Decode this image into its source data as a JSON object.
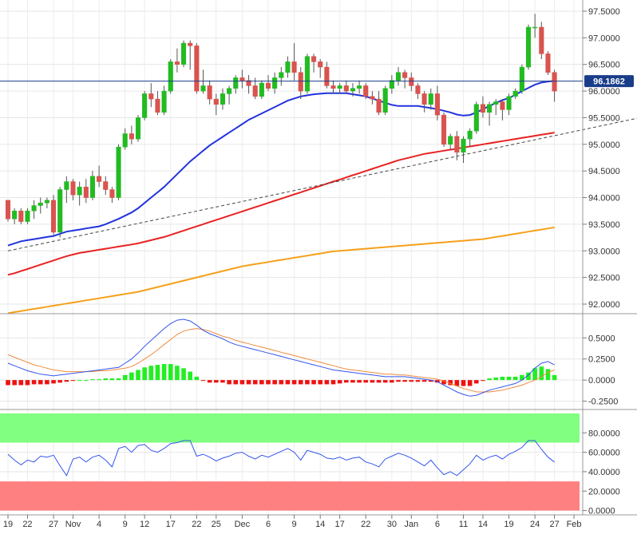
{
  "chart_data": [
    {
      "type": "candlestick",
      "panel": "price",
      "ylim": [
        91.85,
        97.65
      ],
      "yticks": [
        "97.5000",
        "97.0000",
        "96.5000",
        "96.0000",
        "95.5000",
        "95.0000",
        "94.5000",
        "94.0000",
        "93.5000",
        "93.0000",
        "92.5000",
        "92.0000"
      ],
      "ytick_values": [
        97.5,
        97.0,
        96.5,
        96.0,
        95.5,
        95.0,
        94.5,
        94.0,
        93.5,
        93.0,
        92.5,
        92.0
      ],
      "current_price": 96.1862,
      "current_price_label": "96.1862",
      "colors": {
        "up": "#22bb22",
        "down": "#d9534f",
        "sma20": "#2233dd",
        "sma50": "#e82222",
        "sma200": "#f5a01a",
        "trendline": "#444444",
        "price_line": "#1a3d8a"
      },
      "trendline": {
        "x": [
          0,
          101
        ],
        "y": [
          93.0,
          95.6
        ]
      },
      "candles": [
        [
          93.95,
          93.95,
          93.55,
          93.6
        ],
        [
          93.6,
          93.8,
          93.5,
          93.75
        ],
        [
          93.75,
          93.8,
          93.5,
          93.55
        ],
        [
          93.55,
          93.8,
          93.5,
          93.75
        ],
        [
          93.75,
          93.95,
          93.6,
          93.85
        ],
        [
          93.85,
          94.0,
          93.7,
          93.9
        ],
        [
          93.9,
          94.0,
          93.8,
          93.95
        ],
        [
          93.95,
          94.05,
          93.3,
          93.35
        ],
        [
          93.35,
          94.2,
          93.25,
          94.15
        ],
        [
          94.15,
          94.4,
          93.9,
          94.3
        ],
        [
          94.3,
          94.35,
          93.95,
          94.05
        ],
        [
          94.05,
          94.3,
          93.85,
          94.2
        ],
        [
          94.2,
          94.35,
          93.9,
          94.0
        ],
        [
          94.0,
          94.5,
          93.95,
          94.4
        ],
        [
          94.4,
          94.6,
          94.2,
          94.3
        ],
        [
          94.3,
          94.4,
          94.05,
          94.15
        ],
        [
          94.15,
          94.2,
          93.9,
          94.0
        ],
        [
          94.0,
          95.0,
          93.95,
          94.95
        ],
        [
          94.95,
          95.3,
          94.9,
          95.2
        ],
        [
          95.2,
          95.35,
          95.0,
          95.1
        ],
        [
          95.1,
          95.55,
          95.05,
          95.5
        ],
        [
          95.5,
          96.0,
          95.45,
          95.95
        ],
        [
          95.95,
          96.15,
          95.7,
          95.85
        ],
        [
          95.85,
          96.0,
          95.55,
          95.6
        ],
        [
          95.6,
          96.1,
          95.55,
          96.0
        ],
        [
          96.0,
          96.6,
          95.95,
          96.55
        ],
        [
          96.55,
          96.8,
          96.35,
          96.5
        ],
        [
          96.5,
          96.95,
          96.45,
          96.9
        ],
        [
          96.9,
          96.95,
          96.4,
          96.85
        ],
        [
          96.85,
          96.9,
          95.95,
          96.0
        ],
        [
          96.0,
          96.4,
          95.95,
          96.1
        ],
        [
          96.1,
          96.2,
          95.75,
          95.85
        ],
        [
          95.85,
          95.95,
          95.55,
          95.75
        ],
        [
          95.75,
          96.05,
          95.65,
          95.95
        ],
        [
          95.95,
          96.1,
          95.75,
          96.05
        ],
        [
          96.05,
          96.3,
          95.95,
          96.25
        ],
        [
          96.25,
          96.4,
          96.05,
          96.2
        ],
        [
          96.2,
          96.3,
          95.95,
          96.1
        ],
        [
          96.1,
          96.25,
          95.85,
          95.9
        ],
        [
          95.9,
          96.2,
          95.85,
          96.15
        ],
        [
          96.15,
          96.3,
          96.0,
          96.05
        ],
        [
          96.05,
          96.35,
          95.95,
          96.25
        ],
        [
          96.25,
          96.45,
          96.1,
          96.35
        ],
        [
          96.35,
          96.65,
          96.25,
          96.55
        ],
        [
          96.55,
          96.9,
          96.2,
          96.35
        ],
        [
          96.35,
          96.45,
          95.85,
          96.0
        ],
        [
          96.0,
          96.7,
          95.95,
          96.65
        ],
        [
          96.65,
          96.7,
          96.35,
          96.55
        ],
        [
          96.55,
          96.6,
          96.25,
          96.45
        ],
        [
          96.45,
          96.55,
          96.05,
          96.1
        ],
        [
          96.1,
          96.2,
          95.95,
          96.05
        ],
        [
          96.05,
          96.15,
          95.95,
          96.1
        ],
        [
          96.1,
          96.2,
          95.95,
          96.0
        ],
        [
          96.0,
          96.15,
          95.9,
          96.05
        ],
        [
          96.05,
          96.2,
          95.95,
          96.1
        ],
        [
          96.1,
          96.15,
          95.85,
          95.9
        ],
        [
          95.9,
          96.0,
          95.75,
          95.85
        ],
        [
          95.85,
          96.0,
          95.55,
          95.6
        ],
        [
          95.6,
          96.1,
          95.55,
          96.05
        ],
        [
          96.05,
          96.3,
          95.95,
          96.2
        ],
        [
          96.2,
          96.45,
          96.1,
          96.35
        ],
        [
          96.35,
          96.4,
          96.05,
          96.25
        ],
        [
          96.25,
          96.35,
          96.0,
          96.1
        ],
        [
          96.1,
          96.15,
          95.85,
          95.95
        ],
        [
          95.95,
          96.0,
          95.6,
          95.75
        ],
        [
          95.75,
          96.05,
          95.65,
          95.95
        ],
        [
          95.95,
          96.1,
          95.45,
          95.55
        ],
        [
          95.55,
          95.6,
          94.95,
          95.0
        ],
        [
          95.0,
          95.2,
          94.9,
          95.15
        ],
        [
          95.15,
          95.25,
          94.7,
          94.85
        ],
        [
          94.85,
          95.15,
          94.65,
          95.1
        ],
        [
          95.1,
          95.3,
          94.95,
          95.25
        ],
        [
          95.25,
          95.8,
          95.2,
          95.75
        ],
        [
          95.75,
          95.9,
          95.5,
          95.6
        ],
        [
          95.6,
          95.8,
          95.35,
          95.75
        ],
        [
          95.75,
          95.85,
          95.55,
          95.8
        ],
        [
          95.8,
          95.85,
          95.45,
          95.65
        ],
        [
          95.65,
          95.95,
          95.55,
          95.9
        ],
        [
          95.9,
          96.05,
          95.85,
          96.0
        ],
        [
          96.0,
          96.5,
          95.95,
          96.45
        ],
        [
          96.45,
          97.25,
          96.4,
          97.2
        ],
        [
          97.2,
          97.45,
          97.0,
          97.2
        ],
        [
          97.2,
          97.3,
          96.6,
          96.7
        ],
        [
          96.7,
          96.75,
          96.3,
          96.35
        ],
        [
          96.35,
          96.4,
          95.8,
          96.0
        ]
      ],
      "sma20": [
        93.1,
        93.14,
        93.18,
        93.2,
        93.22,
        93.24,
        93.26,
        93.28,
        93.32,
        93.36,
        93.38,
        93.4,
        93.42,
        93.44,
        93.46,
        93.5,
        93.55,
        93.6,
        93.66,
        93.72,
        93.8,
        93.9,
        94.0,
        94.1,
        94.2,
        94.32,
        94.44,
        94.56,
        94.68,
        94.78,
        94.88,
        94.98,
        95.06,
        95.14,
        95.22,
        95.3,
        95.38,
        95.46,
        95.52,
        95.58,
        95.64,
        95.7,
        95.76,
        95.82,
        95.86,
        95.9,
        95.92,
        95.94,
        95.95,
        95.96,
        95.96,
        95.96,
        95.96,
        95.94,
        95.92,
        95.9,
        95.86,
        95.82,
        95.78,
        95.74,
        95.72,
        95.72,
        95.72,
        95.72,
        95.7,
        95.68,
        95.66,
        95.63,
        95.6,
        95.56,
        95.54,
        95.55,
        95.6,
        95.66,
        95.72,
        95.78,
        95.83,
        95.87,
        95.93,
        96.0,
        96.06,
        96.12,
        96.16,
        96.18,
        96.19
      ],
      "sma50": [
        92.55,
        92.58,
        92.62,
        92.66,
        92.7,
        92.74,
        92.78,
        92.82,
        92.86,
        92.9,
        92.93,
        92.96,
        92.98,
        93.0,
        93.02,
        93.04,
        93.06,
        93.08,
        93.1,
        93.12,
        93.14,
        93.17,
        93.2,
        93.23,
        93.26,
        93.3,
        93.34,
        93.38,
        93.42,
        93.46,
        93.5,
        93.54,
        93.58,
        93.62,
        93.66,
        93.7,
        93.74,
        93.78,
        93.82,
        93.86,
        93.9,
        93.94,
        93.98,
        94.02,
        94.06,
        94.1,
        94.14,
        94.18,
        94.22,
        94.26,
        94.3,
        94.34,
        94.38,
        94.42,
        94.46,
        94.5,
        94.54,
        94.58,
        94.62,
        94.66,
        94.7,
        94.73,
        94.76,
        94.79,
        94.82,
        94.84,
        94.86,
        94.88,
        94.9,
        94.92,
        94.94,
        94.96,
        94.98,
        95.0,
        95.02,
        95.04,
        95.06,
        95.08,
        95.1,
        95.12,
        95.14,
        95.16,
        95.18,
        95.2,
        95.22
      ],
      "sma200": [
        91.83,
        91.85,
        91.87,
        91.89,
        91.91,
        91.93,
        91.95,
        91.97,
        91.99,
        92.01,
        92.03,
        92.05,
        92.07,
        92.09,
        92.11,
        92.13,
        92.15,
        92.17,
        92.19,
        92.21,
        92.23,
        92.26,
        92.29,
        92.32,
        92.35,
        92.38,
        92.41,
        92.44,
        92.47,
        92.5,
        92.53,
        92.56,
        92.59,
        92.62,
        92.65,
        92.68,
        92.71,
        92.73,
        92.75,
        92.77,
        92.79,
        92.81,
        92.83,
        92.85,
        92.87,
        92.89,
        92.91,
        92.93,
        92.95,
        92.97,
        92.99,
        93.0,
        93.01,
        93.02,
        93.03,
        93.04,
        93.05,
        93.06,
        93.07,
        93.08,
        93.09,
        93.1,
        93.11,
        93.12,
        93.13,
        93.14,
        93.15,
        93.16,
        93.17,
        93.18,
        93.19,
        93.2,
        93.21,
        93.22,
        93.24,
        93.26,
        93.28,
        93.3,
        93.32,
        93.34,
        93.36,
        93.38,
        93.4,
        93.42,
        93.44
      ]
    },
    {
      "type": "macd",
      "panel": "macd",
      "ylim": [
        -0.32,
        0.72
      ],
      "yticks": [
        "0.5000",
        "0.2500",
        "0.0000",
        "-0.2500"
      ],
      "ytick_values": [
        0.5,
        0.25,
        0,
        -0.25
      ],
      "colors": {
        "macd": "#3355ee",
        "signal": "#f08a3a",
        "hist_pos": "#22ee22",
        "hist_neg": "#ee1111"
      },
      "macd": [
        0.2,
        0.17,
        0.14,
        0.11,
        0.09,
        0.07,
        0.06,
        0.05,
        0.06,
        0.07,
        0.08,
        0.09,
        0.1,
        0.11,
        0.12,
        0.13,
        0.14,
        0.15,
        0.2,
        0.25,
        0.32,
        0.4,
        0.47,
        0.54,
        0.61,
        0.67,
        0.71,
        0.72,
        0.7,
        0.65,
        0.59,
        0.55,
        0.52,
        0.49,
        0.45,
        0.42,
        0.4,
        0.38,
        0.36,
        0.34,
        0.32,
        0.3,
        0.28,
        0.26,
        0.24,
        0.22,
        0.2,
        0.18,
        0.16,
        0.14,
        0.12,
        0.11,
        0.1,
        0.09,
        0.08,
        0.07,
        0.06,
        0.05,
        0.04,
        0.04,
        0.04,
        0.04,
        0.03,
        0.02,
        0.01,
        0.0,
        -0.02,
        -0.06,
        -0.1,
        -0.14,
        -0.17,
        -0.19,
        -0.18,
        -0.15,
        -0.12,
        -0.1,
        -0.08,
        -0.06,
        -0.04,
        0.0,
        0.06,
        0.14,
        0.2,
        0.22,
        0.18
      ],
      "signal": [
        0.3,
        0.27,
        0.24,
        0.21,
        0.18,
        0.16,
        0.14,
        0.12,
        0.11,
        0.1,
        0.1,
        0.1,
        0.1,
        0.1,
        0.11,
        0.11,
        0.12,
        0.13,
        0.14,
        0.16,
        0.2,
        0.25,
        0.3,
        0.36,
        0.42,
        0.48,
        0.54,
        0.58,
        0.6,
        0.61,
        0.6,
        0.58,
        0.55,
        0.52,
        0.5,
        0.47,
        0.45,
        0.43,
        0.41,
        0.39,
        0.37,
        0.35,
        0.33,
        0.31,
        0.29,
        0.27,
        0.25,
        0.23,
        0.21,
        0.19,
        0.17,
        0.15,
        0.13,
        0.12,
        0.11,
        0.1,
        0.09,
        0.08,
        0.07,
        0.07,
        0.06,
        0.06,
        0.05,
        0.04,
        0.03,
        0.02,
        0.01,
        -0.01,
        -0.04,
        -0.07,
        -0.1,
        -0.12,
        -0.14,
        -0.14,
        -0.14,
        -0.13,
        -0.12,
        -0.1,
        -0.08,
        -0.06,
        -0.03,
        0.0,
        0.04,
        0.09,
        0.12
      ],
      "histogram": [
        -0.06,
        -0.06,
        -0.06,
        -0.06,
        -0.05,
        -0.05,
        -0.05,
        -0.04,
        -0.03,
        -0.02,
        -0.01,
        0.0,
        0.0,
        0.01,
        0.01,
        0.02,
        0.02,
        0.02,
        0.06,
        0.09,
        0.12,
        0.15,
        0.17,
        0.18,
        0.19,
        0.19,
        0.17,
        0.14,
        0.1,
        0.04,
        -0.01,
        -0.03,
        -0.03,
        -0.03,
        -0.05,
        -0.05,
        -0.05,
        -0.05,
        -0.05,
        -0.05,
        -0.05,
        -0.05,
        -0.05,
        -0.05,
        -0.05,
        -0.05,
        -0.05,
        -0.05,
        -0.05,
        -0.05,
        -0.05,
        -0.04,
        -0.03,
        -0.03,
        -0.03,
        -0.03,
        -0.03,
        -0.03,
        -0.03,
        -0.03,
        -0.02,
        -0.02,
        -0.02,
        -0.02,
        -0.02,
        -0.02,
        -0.03,
        -0.05,
        -0.06,
        -0.07,
        -0.07,
        -0.07,
        -0.04,
        -0.01,
        0.02,
        0.03,
        0.04,
        0.04,
        0.04,
        0.06,
        0.09,
        0.14,
        0.16,
        0.13,
        0.06
      ]
    },
    {
      "type": "line",
      "panel": "rsi",
      "ylim": [
        -2,
        100
      ],
      "yticks": [
        "80.0000",
        "60.0000",
        "40.0000",
        "20.0000",
        "0.0000"
      ],
      "ytick_values": [
        80,
        60,
        40,
        20,
        0
      ],
      "overbought_zone": [
        70,
        100
      ],
      "oversold_zone": [
        0,
        30
      ],
      "colors": {
        "line": "#3355ee",
        "overbought": "#80ff80",
        "oversold": "#ff8080"
      },
      "rsi": [
        58,
        52,
        47,
        52,
        50,
        56,
        55,
        57,
        46,
        36,
        53,
        55,
        50,
        55,
        57,
        52,
        45,
        64,
        66,
        60,
        67,
        68,
        62,
        60,
        64,
        69,
        70,
        72,
        72,
        56,
        58,
        55,
        51,
        54,
        56,
        59,
        60,
        56,
        53,
        57,
        55,
        58,
        61,
        64,
        60,
        52,
        62,
        60,
        58,
        54,
        53,
        55,
        52,
        54,
        55,
        50,
        48,
        45,
        53,
        56,
        59,
        57,
        54,
        50,
        46,
        52,
        44,
        37,
        40,
        36,
        42,
        48,
        57,
        52,
        55,
        57,
        53,
        58,
        61,
        65,
        72,
        72,
        63,
        55,
        50
      ]
    }
  ],
  "x_axis": {
    "labels": [
      "19",
      "22",
      "27",
      "Nov",
      "4",
      "9",
      "12",
      "17",
      "22",
      "25",
      "Dec",
      "6",
      "9",
      "14",
      "17",
      "22",
      "30",
      "Jan",
      "6",
      "11",
      "14",
      "19",
      "24",
      "27",
      "Feb"
    ],
    "positions": [
      0,
      3,
      7,
      10,
      14,
      18,
      21,
      25,
      29,
      32,
      36,
      40,
      44,
      48,
      51,
      55,
      59,
      62,
      66,
      70,
      73,
      77,
      81,
      84,
      87
    ]
  }
}
